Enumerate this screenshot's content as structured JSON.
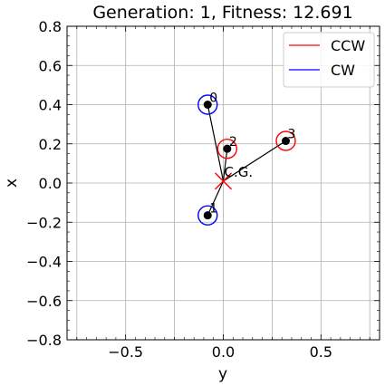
{
  "chart_data": {
    "type": "scatter",
    "title": "Generation: 1, Fitness: 12.691",
    "xlabel": "y",
    "ylabel": "x",
    "xlim": [
      -0.8,
      0.8
    ],
    "ylim": [
      -0.8,
      0.8
    ],
    "x_ticks": [
      -0.5,
      0.0,
      0.5
    ],
    "x_tick_labels": [
      "−0.5",
      "0.0",
      "0.5"
    ],
    "y_ticks": [
      -0.8,
      -0.6,
      -0.4,
      -0.2,
      0.0,
      0.2,
      0.4,
      0.6,
      0.8
    ],
    "y_tick_labels": [
      "−0.8",
      "−0.6",
      "−0.4",
      "−0.2",
      "0.0",
      "0.2",
      "0.4",
      "0.6",
      "0.8"
    ],
    "grid": true,
    "legend_position": "top-right",
    "legend": [
      {
        "label": "CCW",
        "color": "#ff0000"
      },
      {
        "label": "CW",
        "color": "#0000ff"
      }
    ],
    "rotors": [
      {
        "label": "0",
        "y": -0.08,
        "x": 0.4,
        "direction": "CW"
      },
      {
        "label": "1",
        "y": -0.08,
        "x": -0.165,
        "direction": "CW"
      },
      {
        "label": "2",
        "y": 0.02,
        "x": 0.175,
        "direction": "CCW"
      },
      {
        "label": "3",
        "y": 0.32,
        "x": 0.215,
        "direction": "CCW"
      }
    ],
    "center_of_gravity": {
      "label": "C.G.",
      "y": 0.0,
      "x": 0.01,
      "color": "#ff0000"
    }
  }
}
